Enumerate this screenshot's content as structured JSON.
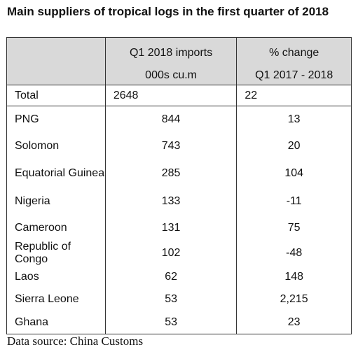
{
  "title": "Main suppliers of tropical logs in the first quarter of 2018",
  "table": {
    "headers": [
      {
        "line1": "",
        "line2": ""
      },
      {
        "line1": "Q1 2018 imports",
        "line2": "000s cu.m"
      },
      {
        "line1": "% change",
        "line2": "Q1 2017 - 2018"
      }
    ],
    "total": {
      "name": "Total",
      "imports": "2648",
      "change": "22"
    },
    "rows": [
      {
        "name": "PNG",
        "imports": "844",
        "change": "13"
      },
      {
        "name": "Solomon",
        "imports": "743",
        "change": "20"
      },
      {
        "name": "Equatorial Guinea",
        "imports": "285",
        "change": "104"
      },
      {
        "name": "Nigeria",
        "imports": "133",
        "change": "-11"
      },
      {
        "name": "Cameroon",
        "imports": "131",
        "change": "75"
      },
      {
        "name": "Republic of Congo",
        "imports": "102",
        "change": "-48"
      },
      {
        "name": "Laos",
        "imports": "62",
        "change": "148"
      },
      {
        "name": "Sierra Leone",
        "imports": "53",
        "change": "2,215"
      },
      {
        "name": "Ghana",
        "imports": "53",
        "change": "23"
      }
    ]
  },
  "source": "Data source: China Customs",
  "colors": {
    "header_background": "#d9d9d9",
    "border": "#333333",
    "text": "#111111"
  }
}
